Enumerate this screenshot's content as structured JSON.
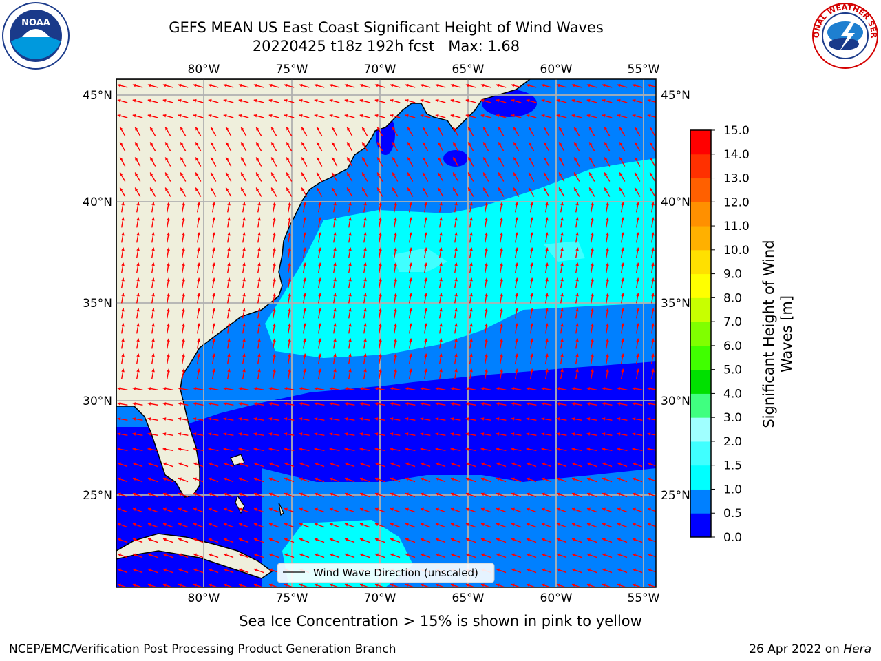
{
  "title": {
    "line1": "GEFS MEAN US East Coast Significant Height of Wind Waves",
    "line2": "20220425 t18z 192h fcst   Max: 1.68"
  },
  "map": {
    "lon_ticks": [
      "80°W",
      "75°W",
      "70°W",
      "65°W",
      "60°W",
      "55°W"
    ],
    "lat_ticks": [
      "45°N",
      "40°N",
      "35°N",
      "30°N",
      "25°N"
    ],
    "legend_label": "Wind Wave Direction (unscaled)",
    "land_color": "#efefdc",
    "arrow_color": "#ff0000"
  },
  "colorbar": {
    "label_line1": "Significant Height of Wind",
    "label_line2": "Waves [m]",
    "levels": [
      "15.0",
      "14.0",
      "13.0",
      "12.0",
      "11.0",
      "10.0",
      "9.0",
      "8.0",
      "7.0",
      "6.0",
      "5.0",
      "4.0",
      "3.0",
      "2.0",
      "1.5",
      "1.0",
      "0.5",
      "0.0"
    ],
    "colors": [
      "#0000ff",
      "#0080ff",
      "#00ffff",
      "#40ffff",
      "#a0ffff",
      "#40ff80",
      "#00e000",
      "#40ff00",
      "#80ff00",
      "#c8ff00",
      "#ffff00",
      "#ffe000",
      "#ffb000",
      "#ff9000",
      "#ff6000",
      "#ff3000",
      "#ff0000"
    ]
  },
  "footer": {
    "note": "Sea Ice Concentration > 15% is shown in pink to yellow",
    "left": "NCEP/EMC/Verification Post Processing Product Generation Branch",
    "right_prefix": "26 Apr 2022 on ",
    "right_host": "Hera"
  },
  "logos": {
    "noaa_text": "NOAA",
    "nws_text": "NATIONAL WEATHER SERVICE"
  }
}
